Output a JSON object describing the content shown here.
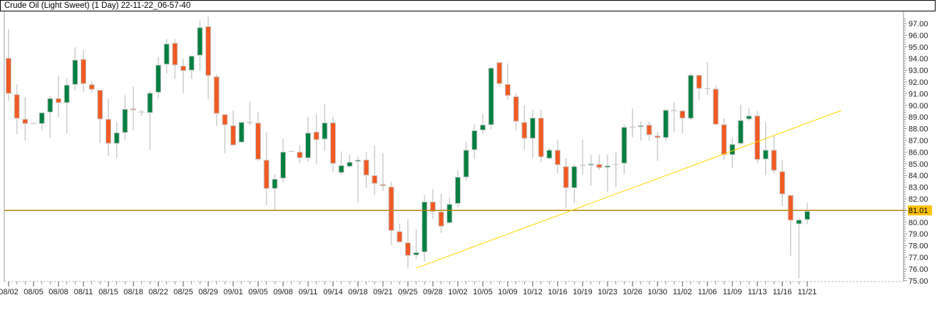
{
  "title": "Crude Oil (Light Sweet) (1 Day) 22-11-22_06-57-40",
  "colors": {
    "up": "#007f3f",
    "down": "#f15a24",
    "doji": "#cccccc",
    "wick": "#cccccc",
    "border": "#cccccc",
    "hline": "#b8860b",
    "hline_label_bg": "#ffc20e",
    "trendline": "#ffd700"
  },
  "chart_data": {
    "type": "candlestick",
    "title": "Crude Oil (Light Sweet) (1 Day) 22-11-22_06-57-40",
    "ylim": [
      75,
      97.6
    ],
    "y_ticks": [
      "97.00",
      "96.00",
      "95.00",
      "94.00",
      "93.00",
      "92.00",
      "91.00",
      "90.00",
      "89.00",
      "88.00",
      "87.00",
      "86.00",
      "85.00",
      "84.00",
      "83.00",
      "82.00",
      "80.00",
      "79.00",
      "78.00",
      "77.00",
      "76.00",
      "75.00"
    ],
    "x_labels": [
      {
        "i": 0,
        "label": "08/02"
      },
      {
        "i": 3,
        "label": "08/05"
      },
      {
        "i": 6,
        "label": "08/08"
      },
      {
        "i": 9,
        "label": "08/11"
      },
      {
        "i": 12,
        "label": "08/15"
      },
      {
        "i": 15,
        "label": "08/18"
      },
      {
        "i": 18,
        "label": "08/22"
      },
      {
        "i": 21,
        "label": "08/25"
      },
      {
        "i": 24,
        "label": "08/29"
      },
      {
        "i": 27,
        "label": "09/01"
      },
      {
        "i": 30,
        "label": "09/05"
      },
      {
        "i": 33,
        "label": "09/08"
      },
      {
        "i": 36,
        "label": "09/11"
      },
      {
        "i": 39,
        "label": "09/14"
      },
      {
        "i": 42,
        "label": "09/18"
      },
      {
        "i": 45,
        "label": "09/21"
      },
      {
        "i": 48,
        "label": "09/25"
      },
      {
        "i": 51,
        "label": "09/28"
      },
      {
        "i": 54,
        "label": "10/02"
      },
      {
        "i": 57,
        "label": "10/05"
      },
      {
        "i": 60,
        "label": "10/09"
      },
      {
        "i": 63,
        "label": "10/12"
      },
      {
        "i": 66,
        "label": "10/16"
      },
      {
        "i": 69,
        "label": "10/19"
      },
      {
        "i": 72,
        "label": "10/23"
      },
      {
        "i": 75,
        "label": "10/26"
      },
      {
        "i": 78,
        "label": "10/30"
      },
      {
        "i": 81,
        "label": "11/02"
      },
      {
        "i": 84,
        "label": "11/06"
      },
      {
        "i": 87,
        "label": "11/09"
      },
      {
        "i": 90,
        "label": "11/13"
      },
      {
        "i": 93,
        "label": "11/16"
      },
      {
        "i": 96,
        "label": "11/21"
      }
    ],
    "ohlc": [
      [
        94.03,
        96.53,
        90.37,
        91.02
      ],
      [
        90.92,
        91.79,
        87.53,
        88.89
      ],
      [
        88.81,
        90.72,
        86.98,
        88.44
      ],
      [
        88.44,
        88.46,
        88.42,
        88.44
      ],
      [
        88.44,
        89.36,
        87.83,
        89.36
      ],
      [
        89.42,
        90.84,
        87.22,
        90.58
      ],
      [
        90.58,
        92.55,
        89.01,
        90.23
      ],
      [
        90.23,
        92.34,
        87.63,
        91.73
      ],
      [
        91.79,
        94.98,
        91.25,
        93.87
      ],
      [
        93.93,
        94.74,
        91.18,
        91.86
      ],
      [
        91.77,
        92.06,
        91.08,
        91.37
      ],
      [
        91.29,
        91.33,
        86.77,
        88.83
      ],
      [
        88.81,
        90.53,
        85.68,
        86.75
      ],
      [
        86.75,
        88.58,
        85.45,
        87.65
      ],
      [
        87.67,
        90.88,
        87.08,
        89.66
      ],
      [
        89.7,
        91.59,
        87.87,
        89.62
      ],
      [
        89.42,
        89.6,
        89.09,
        89.42
      ],
      [
        89.38,
        91.25,
        86.16,
        91.04
      ],
      [
        91.12,
        94.13,
        90.57,
        93.44
      ],
      [
        93.52,
        95.68,
        92.75,
        95.25
      ],
      [
        95.31,
        95.68,
        92.26,
        93.46
      ],
      [
        93.36,
        93.97,
        91.04,
        92.97
      ],
      [
        93.01,
        94.21,
        92.26,
        94.21
      ],
      [
        94.29,
        97.28,
        92.99,
        96.65
      ],
      [
        96.73,
        97.59,
        90.51,
        92.55
      ],
      [
        92.44,
        92.65,
        88.24,
        89.31
      ],
      [
        89.21,
        89.21,
        85.9,
        88.34
      ],
      [
        88.26,
        89.56,
        86.55,
        86.61
      ],
      [
        86.86,
        88.54,
        86.81,
        88.54
      ],
      [
        88.54,
        90.33,
        88.3,
        88.54
      ],
      [
        88.48,
        89.4,
        85.25,
        85.39
      ],
      [
        85.31,
        87.69,
        81.47,
        82.89
      ],
      [
        82.89,
        84.13,
        81.08,
        83.68
      ],
      [
        83.77,
        87.12,
        83.42,
        86.0
      ],
      [
        86.06,
        86.08,
        86.04,
        86.06
      ],
      [
        86.0,
        86.57,
        85.05,
        85.51
      ],
      [
        85.51,
        89.01,
        85.19,
        87.63
      ],
      [
        87.71,
        89.25,
        85.03,
        87.06
      ],
      [
        87.12,
        90.11,
        86.1,
        88.5
      ],
      [
        88.5,
        89.01,
        84.33,
        85.03
      ],
      [
        84.25,
        86.06,
        84.03,
        84.84
      ],
      [
        84.78,
        85.8,
        84.68,
        85.13
      ],
      [
        85.21,
        85.66,
        81.63,
        85.31
      ],
      [
        85.33,
        86.04,
        82.95,
        84.03
      ],
      [
        83.99,
        86.57,
        82.34,
        83.32
      ],
      [
        83.22,
        85.9,
        82.69,
        83.12
      ],
      [
        83.01,
        83.44,
        78.07,
        79.29
      ],
      [
        79.19,
        79.86,
        78.24,
        78.32
      ],
      [
        78.24,
        80.27,
        76.08,
        77.16
      ],
      [
        77.2,
        79.37,
        76.86,
        77.4
      ],
      [
        77.46,
        82.3,
        76.65,
        81.73
      ],
      [
        81.73,
        82.85,
        80.27,
        80.92
      ],
      [
        80.88,
        82.44,
        79.09,
        79.66
      ],
      [
        79.96,
        82.08,
        79.86,
        81.53
      ],
      [
        81.61,
        84.44,
        81.29,
        83.85
      ],
      [
        83.87,
        86.88,
        83.56,
        86.16
      ],
      [
        86.2,
        88.38,
        85.39,
        87.83
      ],
      [
        87.89,
        89.25,
        87.59,
        88.32
      ],
      [
        88.34,
        93.28,
        87.93,
        93.18
      ],
      [
        93.66,
        93.68,
        91.59,
        91.86
      ],
      [
        91.79,
        93.58,
        90.43,
        90.84
      ],
      [
        90.74,
        91.02,
        87.87,
        88.64
      ],
      [
        88.54,
        90.0,
        86.2,
        87.18
      ],
      [
        87.18,
        89.62,
        85.49,
        88.91
      ],
      [
        88.91,
        89.62,
        85.13,
        85.6
      ],
      [
        85.47,
        86.37,
        85.39,
        86.16
      ],
      [
        86.16,
        87.06,
        84.17,
        84.92
      ],
      [
        84.76,
        85.47,
        81.22,
        82.95
      ],
      [
        82.95,
        84.94,
        81.63,
        84.76
      ],
      [
        84.86,
        87.08,
        84.11,
        84.86
      ],
      [
        84.94,
        85.76,
        83.12,
        84.98
      ],
      [
        84.94,
        85.76,
        84.48,
        84.68
      ],
      [
        84.7,
        85.76,
        82.59,
        84.82
      ],
      [
        84.94,
        86.0,
        82.99,
        84.94
      ],
      [
        85.05,
        88.38,
        84.11,
        88.12
      ],
      [
        88.14,
        89.72,
        87.26,
        88.14
      ],
      [
        88.2,
        88.64,
        86.98,
        88.26
      ],
      [
        88.3,
        88.58,
        86.98,
        87.48
      ],
      [
        87.38,
        87.73,
        85.25,
        87.24
      ],
      [
        87.24,
        89.66,
        86.98,
        89.58
      ],
      [
        89.56,
        90.27,
        87.69,
        89.56
      ],
      [
        89.52,
        89.6,
        87.59,
        88.91
      ],
      [
        88.89,
        92.77,
        88.75,
        92.57
      ],
      [
        92.57,
        92.57,
        90.43,
        91.45
      ],
      [
        91.43,
        93.68,
        90.92,
        91.43
      ],
      [
        91.39,
        91.69,
        88.3,
        88.38
      ],
      [
        88.34,
        88.89,
        85.31,
        85.78
      ],
      [
        85.78,
        87.22,
        84.64,
        86.65
      ],
      [
        86.75,
        90.05,
        86.61,
        88.7
      ],
      [
        88.83,
        89.72,
        88.68,
        89.09
      ],
      [
        89.09,
        89.5,
        85.05,
        85.37
      ],
      [
        85.41,
        88.58,
        84.03,
        86.16
      ],
      [
        86.16,
        87.42,
        84.17,
        84.44
      ],
      [
        84.33,
        85.35,
        81.37,
        82.42
      ],
      [
        82.3,
        82.34,
        77.12,
        80.17
      ],
      [
        79.86,
        80.41,
        75.23,
        80.19
      ],
      [
        80.23,
        81.63,
        79.84,
        80.92
      ]
    ],
    "horizontal_line": {
      "value": 81.01,
      "label": "81.01"
    },
    "trendline": {
      "from": {
        "i": 49,
        "price": 76.08
      },
      "to": {
        "i": 100.1,
        "price": 89.56
      }
    }
  }
}
